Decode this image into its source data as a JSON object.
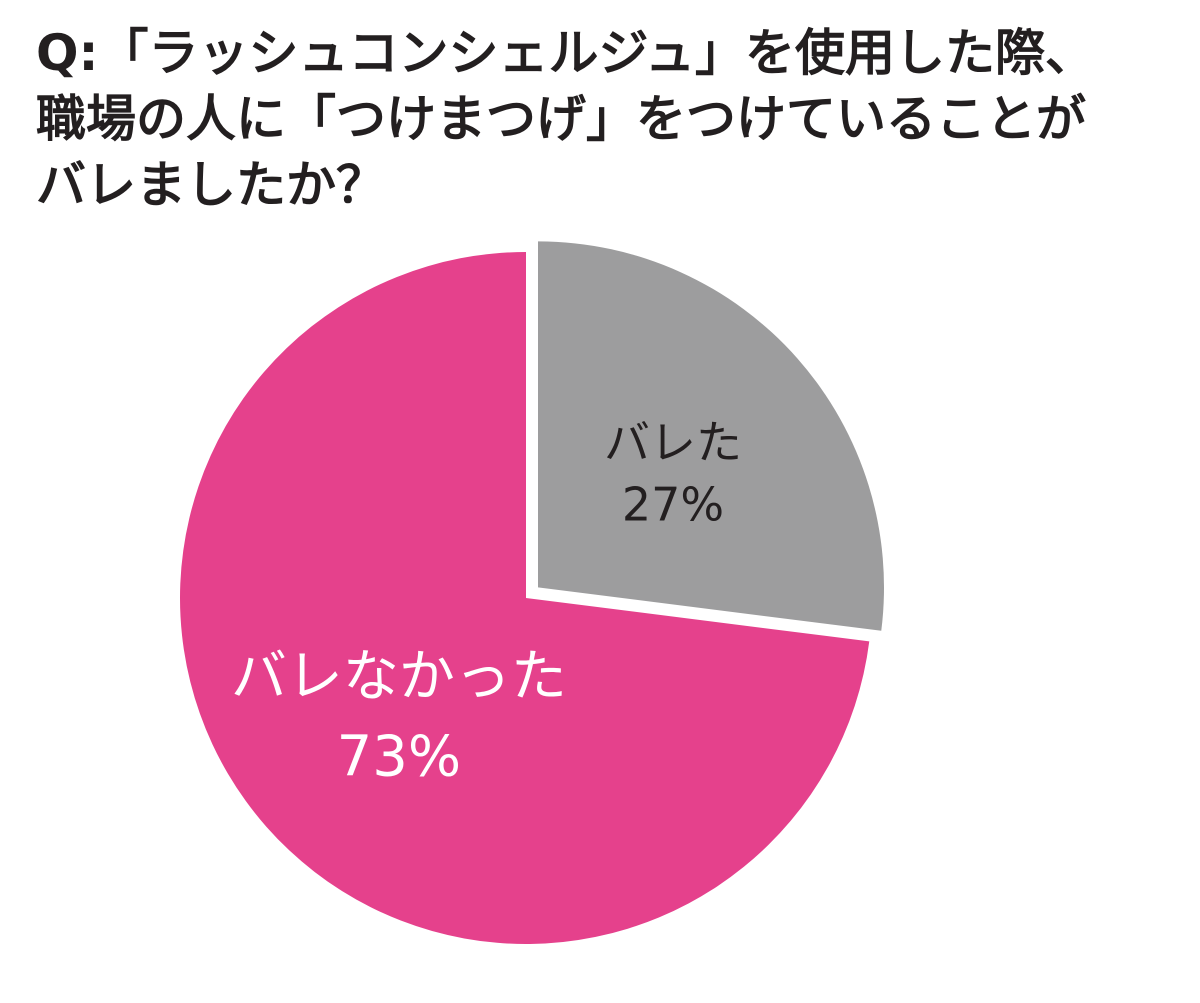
{
  "chart_data": {
    "type": "pie",
    "title_lines": [
      "Q:「ラッシュコンシェルジュ」を使用した際、",
      "職場の人に「つけまつげ」をつけていることが",
      "バレましたか？"
    ],
    "slices": [
      {
        "label": "バレた",
        "value": 27,
        "value_label": "27%",
        "color": "#9d9d9e",
        "text_color": "#231f20",
        "exploded": true
      },
      {
        "label": "バレなかった",
        "value": 73,
        "value_label": "73%",
        "color": "#e5418c",
        "text_color": "#ffffff",
        "exploded": false
      }
    ],
    "start": "12 o'clock, clockwise",
    "legend": "none (labels inside slices)"
  }
}
